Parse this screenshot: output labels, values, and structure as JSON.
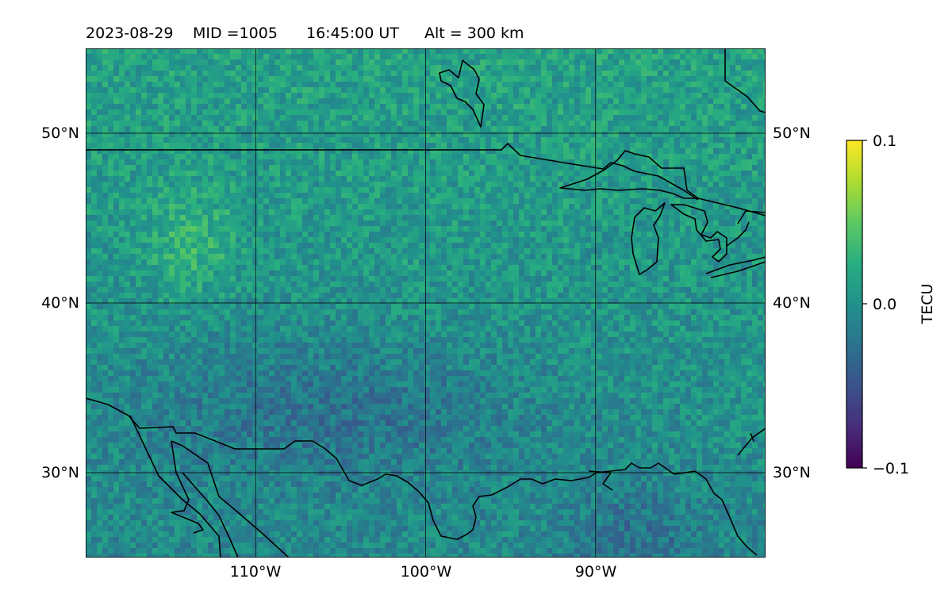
{
  "title": {
    "date": "2023-08-29",
    "mid": "MID =1005",
    "time": "16:45:00  UT",
    "alt": "Alt = 300 km"
  },
  "map": {
    "lon_range": [
      -120,
      -80
    ],
    "lat_range": [
      25,
      55
    ],
    "lat_ticks": [
      {
        "value": 50,
        "label": "50°N"
      },
      {
        "value": 40,
        "label": "40°N"
      },
      {
        "value": 30,
        "label": "30°N"
      }
    ],
    "lon_ticks": [
      {
        "value": -110,
        "label": "110°W"
      },
      {
        "value": -100,
        "label": "100°W"
      },
      {
        "value": -90,
        "label": "90°W"
      }
    ],
    "gridlines": true,
    "features": [
      "coastlines",
      "borders",
      "great-lakes"
    ]
  },
  "colorbar": {
    "label": "TECU",
    "colormap": "viridis",
    "range": [
      -0.1,
      0.1
    ],
    "ticks": [
      {
        "value": 0.1,
        "label": "0.1"
      },
      {
        "value": 0.0,
        "label": "0.0"
      },
      {
        "value": -0.1,
        "label": "−0.1"
      }
    ]
  },
  "colors": {
    "viridis_low": "#440154",
    "viridis_mid": "#21918c",
    "viridis_high": "#fde725",
    "line": "#000000"
  }
}
